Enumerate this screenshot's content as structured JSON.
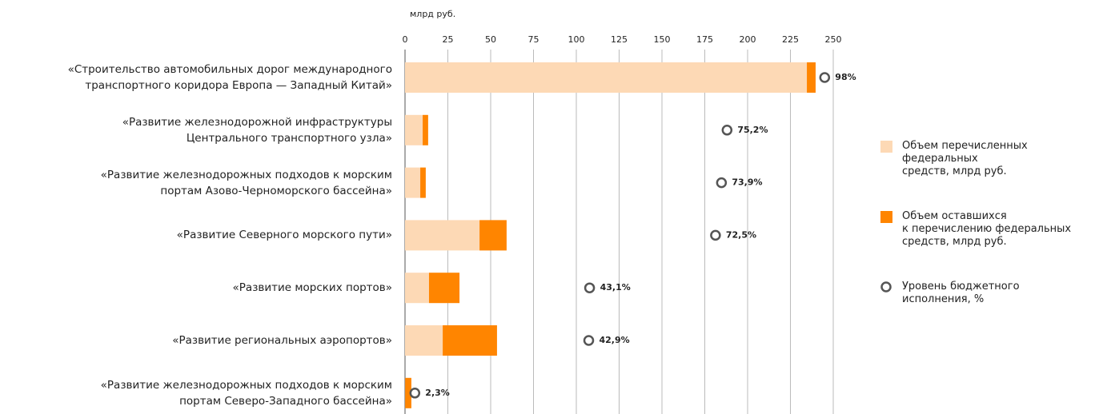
{
  "chart_data": {
    "type": "bar",
    "orientation": "horizontal",
    "stacked": true,
    "x_label": "млрд руб.",
    "categories": [
      "«Строительство автомобильных дорог международного\nтранспортного коридора Европа — Западный Китай»",
      "«Развитие железнодорожной инфраструктуры\nЦентрального транспортного узла»",
      "«Развитие железнодорожных подходов к морским\nпортам Азово-Черноморского бассейна»",
      "«Развитие Северного морского пути»",
      "«Развитие морских портов»",
      "«Развитие региональных аэропортов»",
      "«Развитие железнодорожных подходов к морским\nпортам Северо-Западного бассейна»"
    ],
    "series": [
      {
        "name": "Объем перечисленных\nфедеральных\nсредств, млрд руб.",
        "color": "#fdd9b5",
        "values": [
          234.6,
          10.3,
          8.9,
          43.5,
          14,
          22,
          0.1
        ]
      },
      {
        "name": "Объем оставшихся\nк перечислению федеральных\nсредств, млрд руб.",
        "color": "#ff8500",
        "values": [
          5.1,
          3.2,
          3.2,
          15.8,
          17.8,
          31.7,
          3.6
        ]
      },
      {
        "name": "Уровень бюджетного\nисполнения, %",
        "type": "scatter",
        "axis": "x2",
        "color": "#555555",
        "values": [
          98,
          75.2,
          73.9,
          72.5,
          43.1,
          42.9,
          2.3
        ],
        "value_labels": [
          "98%",
          "75,2%",
          "73,9%",
          "72,5%",
          "43,1%",
          "42,9%",
          "2,3%"
        ]
      }
    ],
    "xlim": [
      0,
      250
    ],
    "xticks": [
      0,
      25,
      50,
      75,
      100,
      125,
      150,
      175,
      200,
      225,
      250
    ],
    "x2lim": [
      0,
      100
    ],
    "grid": true
  }
}
